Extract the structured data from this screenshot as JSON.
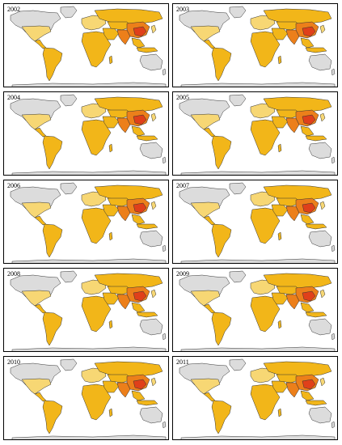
{
  "figure": {
    "panels": [
      {
        "year": "2002"
      },
      {
        "year": "2003"
      },
      {
        "year": "2004"
      },
      {
        "year": "2005"
      },
      {
        "year": "2006"
      },
      {
        "year": "2007"
      },
      {
        "year": "2008"
      },
      {
        "year": "2009"
      },
      {
        "year": "2010"
      },
      {
        "year": "2011"
      }
    ]
  },
  "colors": {
    "ocean": "#ffffff",
    "no_data": "#dcdcdc",
    "low": "#f7d774",
    "medium": "#f2b619",
    "high": "#ec7f1a",
    "very_high": "#e0401a",
    "border": "#333333"
  }
}
